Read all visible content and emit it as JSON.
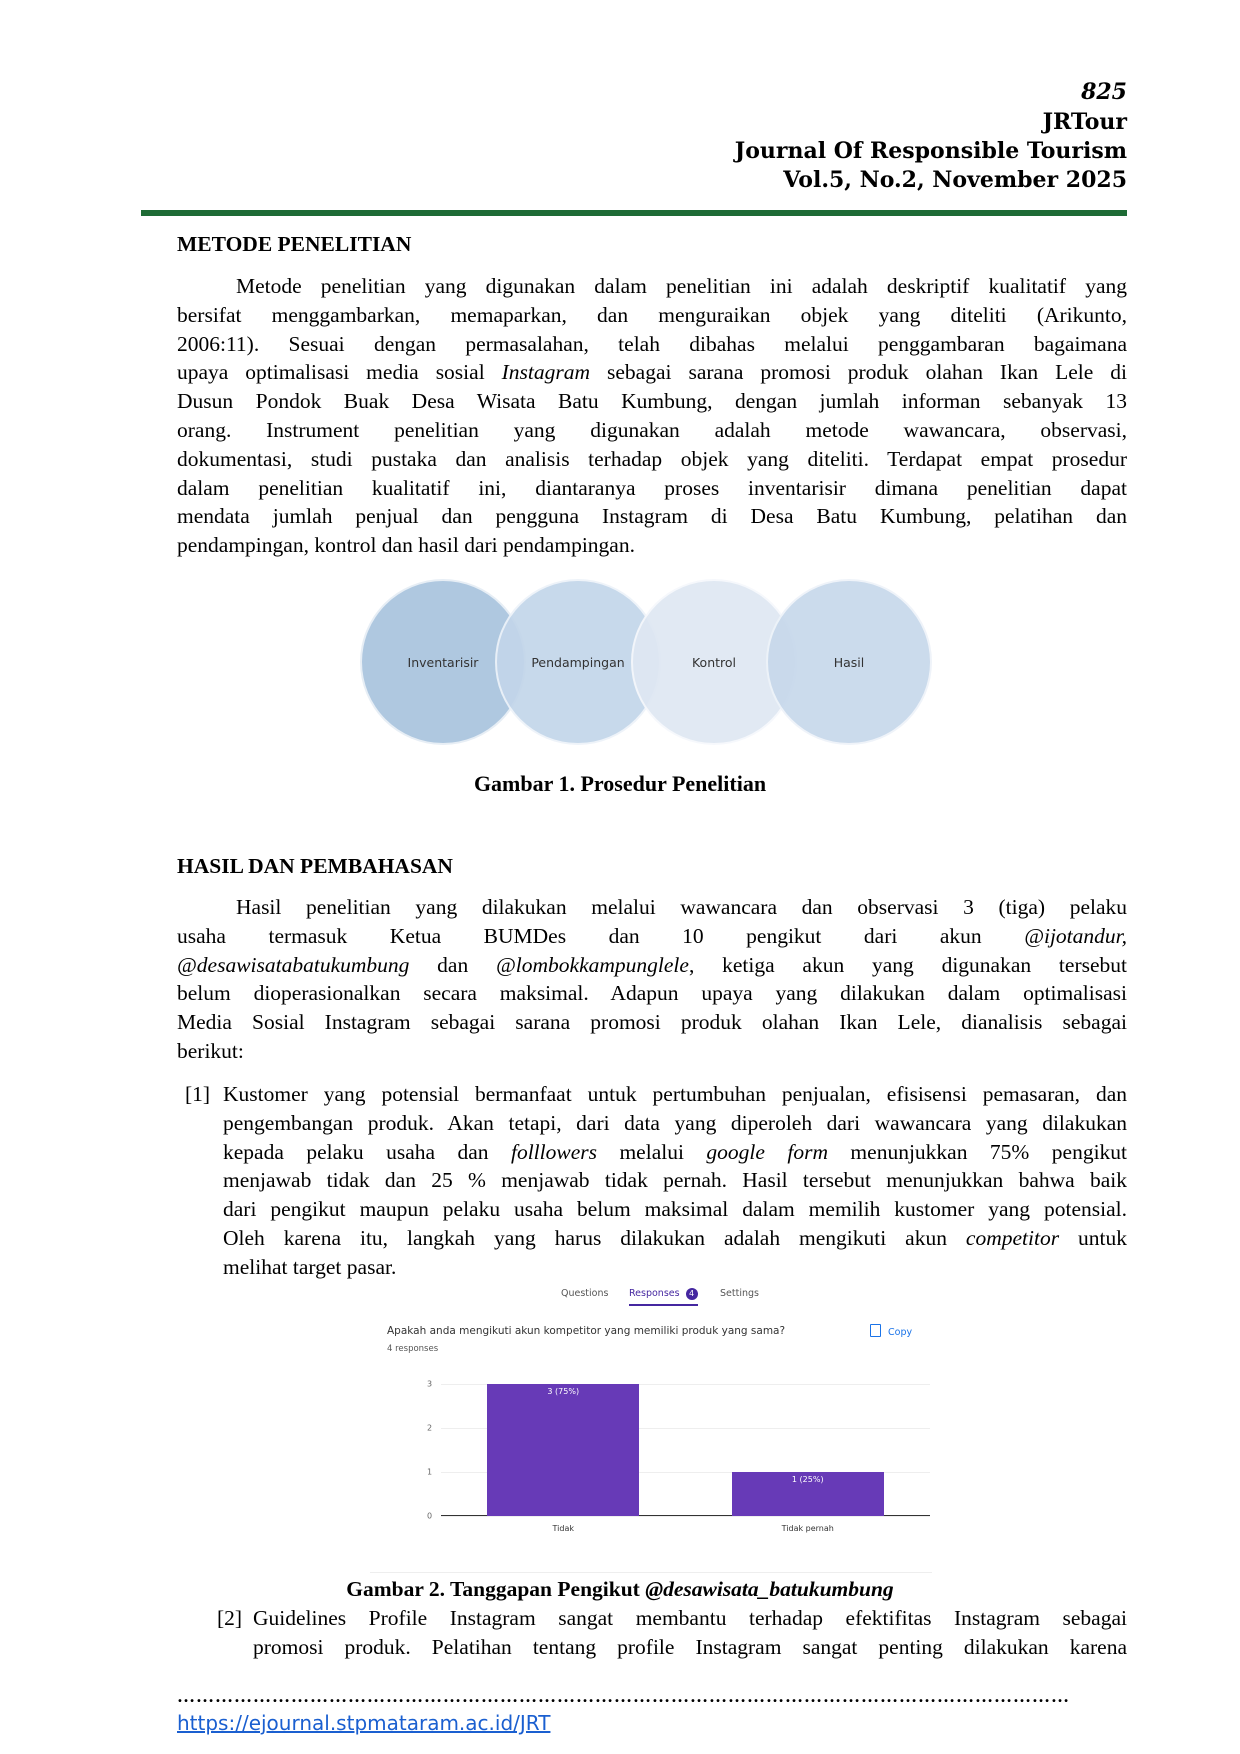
{
  "header": {
    "page_number": "825",
    "journal_short": "JRTour",
    "journal_name": "Journal Of Responsible Tourism",
    "volume": "Vol.5, No.2, November 2025",
    "rule_color": "#1e6b35"
  },
  "section1": {
    "heading": "METODE PENELITIAN",
    "lines": [
      [
        [
          "Metode penelitian yang digunakan dalam penelitian ini adalah deskriptif kualitatif yang",
          ""
        ]
      ],
      [
        [
          "bersifat menggambarkan, memaparkan, dan menguraikan objek yang diteliti (Arikunto,",
          ""
        ]
      ],
      [
        [
          "2006:11). Sesuai dengan permasalahan, telah dibahas melalui penggambaran bagaimana",
          ""
        ]
      ],
      [
        [
          "upaya optimalisasi media sosial ",
          ""
        ],
        [
          "Instagram",
          "i"
        ],
        [
          " sebagai sarana promosi produk olahan Ikan Lele di",
          ""
        ]
      ],
      [
        [
          "Dusun Pondok Buak Desa Wisata Batu Kumbung, dengan jumlah informan sebanyak 13",
          ""
        ]
      ],
      [
        [
          "orang. Instrument penelitian yang digunakan adalah metode wawancara, observasi,",
          ""
        ]
      ],
      [
        [
          "dokumentasi, studi pustaka dan analisis terhadap objek yang diteliti. Terdapat empat prosedur",
          ""
        ]
      ],
      [
        [
          "dalam penelitian kualitatif ini, diantaranya proses inventarisir dimana penelitian dapat",
          ""
        ]
      ],
      [
        [
          "mendata jumlah penjual dan pengguna Instagram di Desa Batu Kumbung, pelatihan dan",
          ""
        ]
      ],
      [
        [
          "pendampingan, kontrol dan hasil dari pendampingan.",
          ""
        ]
      ]
    ]
  },
  "figure1": {
    "steps": [
      "Inventarisir",
      "Pendampingan",
      "Kontrol",
      "Hasil"
    ],
    "colors": [
      "#a9c4de",
      "#c3d6ea",
      "#dfe8f3",
      "#c7d8eb"
    ],
    "caption": "Gambar 1. Prosedur Penelitian"
  },
  "section2": {
    "heading": "HASIL DAN PEMBAHASAN",
    "lines": [
      [
        [
          "Hasil penelitian yang dilakukan melalui wawancara dan observasi 3 (tiga) pelaku",
          ""
        ]
      ],
      [
        [
          "usaha termasuk Ketua BUMDes dan 10 pengikut dari akun ",
          ""
        ],
        [
          "@ijotandur,",
          "i"
        ]
      ],
      [
        [
          "@desawisatabatukumbung",
          "i"
        ],
        [
          " dan ",
          ""
        ],
        [
          "@lombokkampunglele",
          "i"
        ],
        [
          ", ketiga akun yang digunakan tersebut",
          ""
        ]
      ],
      [
        [
          "belum dioperasionalkan secara maksimal. Adapun upaya yang dilakukan dalam optimalisasi",
          ""
        ]
      ],
      [
        [
          "Media Sosial Instagram sebagai sarana promosi produk olahan Ikan Lele, dianalisis sebagai",
          ""
        ]
      ],
      [
        [
          "berikut:",
          ""
        ]
      ]
    ]
  },
  "list": [
    {
      "marker": "[1]",
      "lines": [
        [
          [
            "Kustomer yang potensial bermanfaat untuk pertumbuhan penjualan, efisisensi pemasaran, dan",
            ""
          ]
        ],
        [
          [
            "pengembangan produk. Akan tetapi, dari data yang diperoleh dari wawancara yang dilakukan",
            ""
          ]
        ],
        [
          [
            "kepada pelaku usaha dan ",
            ""
          ],
          [
            "folllowers",
            "i"
          ],
          [
            " melalui ",
            ""
          ],
          [
            "google form",
            "i"
          ],
          [
            " menunjukkan 75% pengikut",
            ""
          ]
        ],
        [
          [
            "menjawab tidak dan 25 % menjawab tidak pernah. Hasil tersebut menunjukkan bahwa baik",
            ""
          ]
        ],
        [
          [
            "dari pengikut maupun pelaku usaha belum maksimal dalam memilih kustomer yang potensial.",
            ""
          ]
        ],
        [
          [
            "Oleh karena itu, langkah yang harus dilakukan adalah mengikuti akun ",
            ""
          ],
          [
            "competitor",
            "i"
          ],
          [
            " untuk",
            ""
          ]
        ],
        [
          [
            "melihat target pasar.",
            ""
          ]
        ]
      ]
    },
    {
      "marker": "[2]",
      "lines": [
        [
          [
            "Guidelines Profile Instagram sangat membantu terhadap efektifitas Instagram sebagai",
            ""
          ]
        ],
        [
          [
            "promosi produk. Pelatihan tentang profile Instagram sangat penting dilakukan karena",
            ""
          ]
        ]
      ]
    }
  ],
  "figure2": {
    "tabs": {
      "questions": "Questions",
      "responses": "Responses",
      "responses_count": "4",
      "settings": "Settings"
    },
    "question": "Apakah anda mengikuti akun kompetitor yang memiliki produk yang sama?",
    "responses_label": "4 responses",
    "copy_label": "Copy",
    "caption_prefix": "Gambar 2. Tanggapan Pengikut ",
    "caption_account": "@desawisata_batukumbung"
  },
  "chart_data": {
    "type": "bar",
    "categories": [
      "Tidak",
      "Tidak pernah"
    ],
    "values": [
      3,
      1
    ],
    "data_labels": [
      "3 (75%)",
      "1 (25%)"
    ],
    "yticks": [
      "0",
      "1",
      "2",
      "3"
    ],
    "ylim": [
      0,
      3
    ],
    "grid": true,
    "bar_color": "#673ab7"
  },
  "footer": {
    "dots": "……………………………………………………………………………………………………………………………",
    "url": "https://ejournal.stpmataram.ac.id/JRT"
  }
}
